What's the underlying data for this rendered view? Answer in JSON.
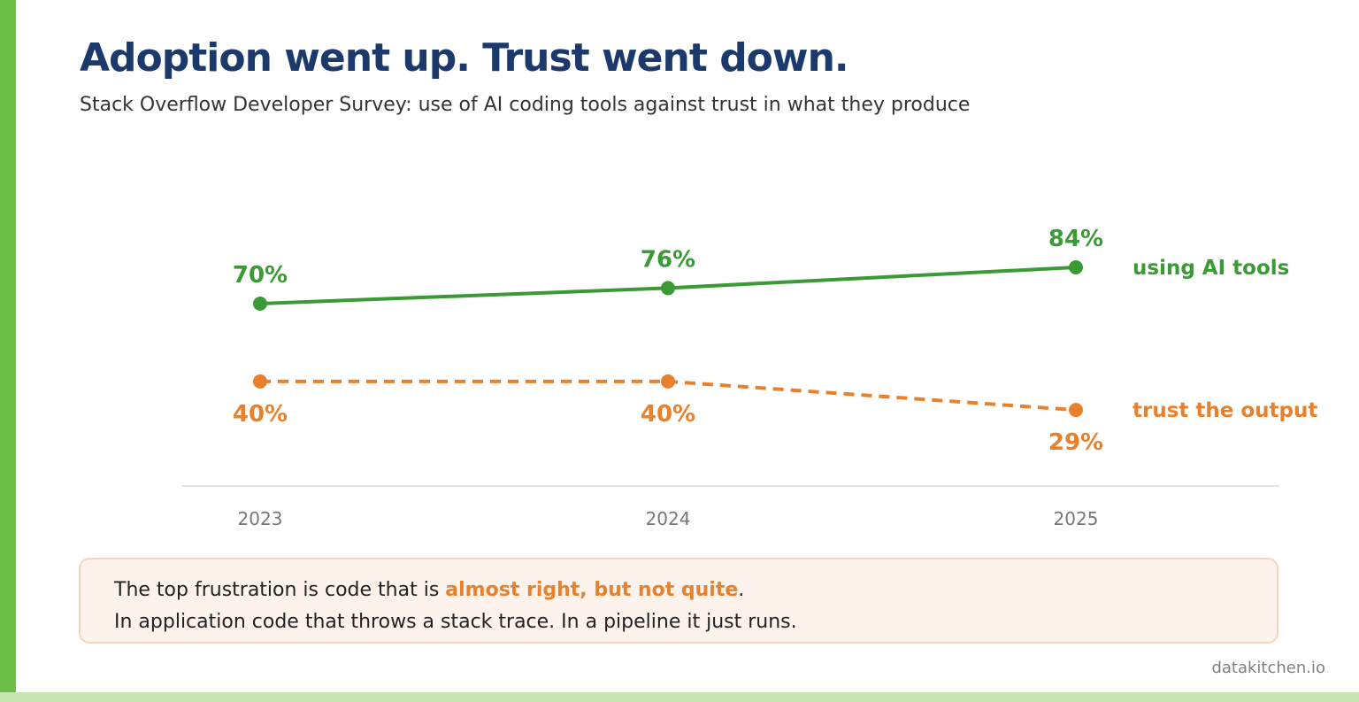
{
  "title": "Adoption went up. Trust went down.",
  "subtitle": "Stack Overflow Developer Survey: use of AI coding tools against trust in what they produce",
  "colors": {
    "accent_green": "#3a9a35",
    "accent_orange": "#e8802c",
    "title_navy": "#1b3a6b",
    "left_bar": "#6cc04a"
  },
  "chart_data": {
    "type": "line",
    "x": [
      "2023",
      "2024",
      "2025"
    ],
    "series": [
      {
        "name": "using AI tools",
        "values": [
          70,
          76,
          84
        ],
        "labels": [
          "70%",
          "76%",
          "84%"
        ],
        "color": "#3a9a35",
        "style": "solid"
      },
      {
        "name": "trust the output",
        "values": [
          40,
          40,
          29
        ],
        "labels": [
          "40%",
          "40%",
          "29%"
        ],
        "color": "#e8802c",
        "style": "dashed"
      }
    ],
    "grid": false,
    "legend": "right"
  },
  "note": {
    "line1_before": "The top frustration is code that is ",
    "line1_highlight": "almost right, but not quite",
    "line1_after": ".",
    "line2": "In application code that throws a stack trace. In a pipeline it just runs."
  },
  "footer": "datakitchen.io"
}
